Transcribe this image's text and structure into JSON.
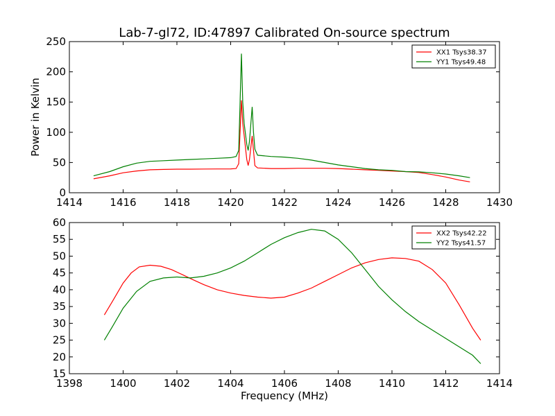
{
  "figure_title": "Lab-7-gl72, ID:47897 Calibrated On-source spectrum",
  "colors": {
    "xx": "#ff0000",
    "yy": "#008000",
    "axis": "#000000",
    "background": "#ffffff"
  },
  "chart_data": [
    {
      "type": "line",
      "title": "Lab-7-gl72, ID:47897 Calibrated On-source spectrum",
      "xlabel": "",
      "ylabel": "Power in Kelvin",
      "xlim": [
        1414,
        1430
      ],
      "ylim": [
        0,
        250
      ],
      "xticks": [
        "1414",
        "1416",
        "1418",
        "1420",
        "1422",
        "1424",
        "1426",
        "1428",
        "1430"
      ],
      "yticks": [
        "0",
        "50",
        "100",
        "150",
        "200",
        "250"
      ],
      "grid": false,
      "legend_position": "top-right",
      "series": [
        {
          "name": "XX1 Tsys38.37",
          "color": "#ff0000",
          "x": [
            1414.9,
            1415.5,
            1416.0,
            1416.5,
            1417.0,
            1417.5,
            1418.0,
            1418.5,
            1419.0,
            1419.5,
            1420.0,
            1420.2,
            1420.3,
            1420.4,
            1420.45,
            1420.5,
            1420.6,
            1420.65,
            1420.7,
            1420.8,
            1420.85,
            1420.9,
            1421.0,
            1421.5,
            1422.0,
            1422.5,
            1423.0,
            1423.5,
            1424.0,
            1424.5,
            1425.0,
            1425.5,
            1426.0,
            1426.5,
            1427.0,
            1427.5,
            1428.0,
            1428.5,
            1428.9
          ],
          "y": [
            23,
            28,
            33,
            36,
            38,
            38.5,
            39,
            39,
            39.2,
            39.3,
            39.5,
            40,
            48,
            153,
            115,
            95,
            55,
            45,
            55,
            94,
            70,
            45,
            41,
            40,
            40,
            40.5,
            40.5,
            40.5,
            40,
            39,
            38,
            37,
            36,
            35,
            33.5,
            30,
            26,
            21,
            18
          ]
        },
        {
          "name": "YY1 Tsys49.48",
          "color": "#008000",
          "x": [
            1414.9,
            1415.5,
            1416.0,
            1416.5,
            1417.0,
            1417.5,
            1418.0,
            1418.5,
            1419.0,
            1419.5,
            1420.0,
            1420.2,
            1420.3,
            1420.4,
            1420.45,
            1420.5,
            1420.6,
            1420.65,
            1420.7,
            1420.8,
            1420.85,
            1420.9,
            1421.0,
            1421.5,
            1422.0,
            1422.5,
            1423.0,
            1423.5,
            1424.0,
            1424.5,
            1425.0,
            1425.5,
            1426.0,
            1426.5,
            1427.0,
            1427.5,
            1428.0,
            1428.5,
            1428.9
          ],
          "y": [
            28,
            35,
            43,
            49,
            52,
            53,
            54,
            55,
            56,
            57,
            58,
            60,
            70,
            230,
            150,
            115,
            80,
            70,
            85,
            142,
            100,
            72,
            62,
            60,
            59,
            57,
            54,
            50,
            46,
            43,
            40,
            38,
            37,
            35,
            34.5,
            33,
            31,
            28,
            25
          ]
        }
      ]
    },
    {
      "type": "line",
      "title": "",
      "xlabel": "Frequency (MHz)",
      "ylabel": "",
      "xlim": [
        1398,
        1414
      ],
      "ylim": [
        15,
        60
      ],
      "xticks": [
        "1398",
        "1400",
        "1402",
        "1404",
        "1406",
        "1408",
        "1410",
        "1412",
        "1414"
      ],
      "yticks": [
        "15",
        "20",
        "25",
        "30",
        "35",
        "40",
        "45",
        "50",
        "55",
        "60"
      ],
      "grid": false,
      "legend_position": "top-right",
      "series": [
        {
          "name": "XX2 Tsys42.22",
          "color": "#ff0000",
          "x": [
            1399.3,
            1399.6,
            1400.0,
            1400.3,
            1400.6,
            1401.0,
            1401.4,
            1401.8,
            1402.2,
            1402.6,
            1403.0,
            1403.5,
            1404.0,
            1404.5,
            1405.0,
            1405.5,
            1406.0,
            1406.5,
            1407.0,
            1407.5,
            1408.0,
            1408.5,
            1409.0,
            1409.5,
            1410.0,
            1410.5,
            1411.0,
            1411.5,
            1412.0,
            1412.5,
            1413.0,
            1413.3
          ],
          "y": [
            32.5,
            36.5,
            42,
            45,
            46.8,
            47.3,
            47,
            46,
            44.5,
            43,
            41.5,
            40,
            39,
            38.3,
            37.8,
            37.5,
            37.8,
            39,
            40.5,
            42.5,
            44.5,
            46.5,
            48,
            49,
            49.5,
            49.3,
            48.5,
            46,
            42,
            35.5,
            28.5,
            25
          ]
        },
        {
          "name": "YY2 Tsys41.57",
          "color": "#008000",
          "x": [
            1399.3,
            1399.6,
            1400.0,
            1400.5,
            1401.0,
            1401.5,
            1402.0,
            1402.5,
            1403.0,
            1403.5,
            1404.0,
            1404.5,
            1405.0,
            1405.5,
            1406.0,
            1406.5,
            1407.0,
            1407.5,
            1408.0,
            1408.5,
            1409.0,
            1409.5,
            1410.0,
            1410.5,
            1411.0,
            1411.5,
            1412.0,
            1412.5,
            1413.0,
            1413.3
          ],
          "y": [
            25,
            29,
            34.5,
            39.5,
            42.5,
            43.5,
            43.8,
            43.5,
            44,
            45,
            46.5,
            48.5,
            51,
            53.5,
            55.5,
            57,
            58,
            57.5,
            55,
            51,
            46,
            41,
            37,
            33.5,
            30.5,
            28,
            25.5,
            23,
            20.5,
            18
          ]
        }
      ]
    }
  ]
}
